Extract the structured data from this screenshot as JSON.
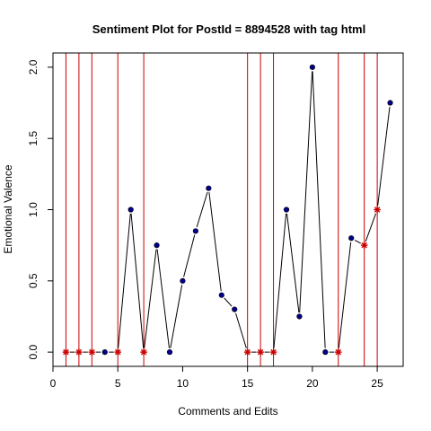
{
  "chart_data": {
    "type": "scatter",
    "title": "Sentiment Plot for PostId =  8894528  with tag  html",
    "xlabel": "Comments and Edits",
    "ylabel": "Emotional Valence",
    "xlim": [
      0,
      27
    ],
    "ylim": [
      -0.1,
      2.1
    ],
    "x_ticks": [
      0,
      5,
      10,
      15,
      20,
      25
    ],
    "y_ticks": [
      0.0,
      0.5,
      1.0,
      1.5,
      2.0
    ],
    "x_tick_labels": [
      "0",
      "5",
      "10",
      "15",
      "20",
      "25"
    ],
    "y_tick_labels": [
      "0.0",
      "0.5",
      "1.0",
      "1.5",
      "2.0"
    ],
    "grid": false,
    "series": [
      {
        "x": [
          1,
          2,
          3,
          4,
          5,
          6,
          7,
          8,
          9,
          10,
          11,
          12,
          13,
          14,
          15,
          16,
          17,
          18,
          19,
          20,
          21,
          22,
          23,
          24,
          25,
          26
        ],
        "y": [
          0,
          0,
          0,
          0,
          0,
          1.0,
          0,
          0.75,
          0,
          0.5,
          0.85,
          1.15,
          0.4,
          0.3,
          0,
          0,
          0,
          1.0,
          0.25,
          2.0,
          0,
          0,
          0.8,
          0.75,
          1.0,
          1.75
        ],
        "marker_colors": {
          "point": "#00008b",
          "edit": "#cc0000"
        }
      }
    ],
    "edit_points": [
      1,
      2,
      3,
      5,
      7,
      15,
      16,
      17,
      22,
      24,
      25
    ],
    "colors": {
      "line": "#000000",
      "point_fill": "#00008b",
      "edit_marker": "#cc0000",
      "vline": "#cc0000"
    }
  }
}
